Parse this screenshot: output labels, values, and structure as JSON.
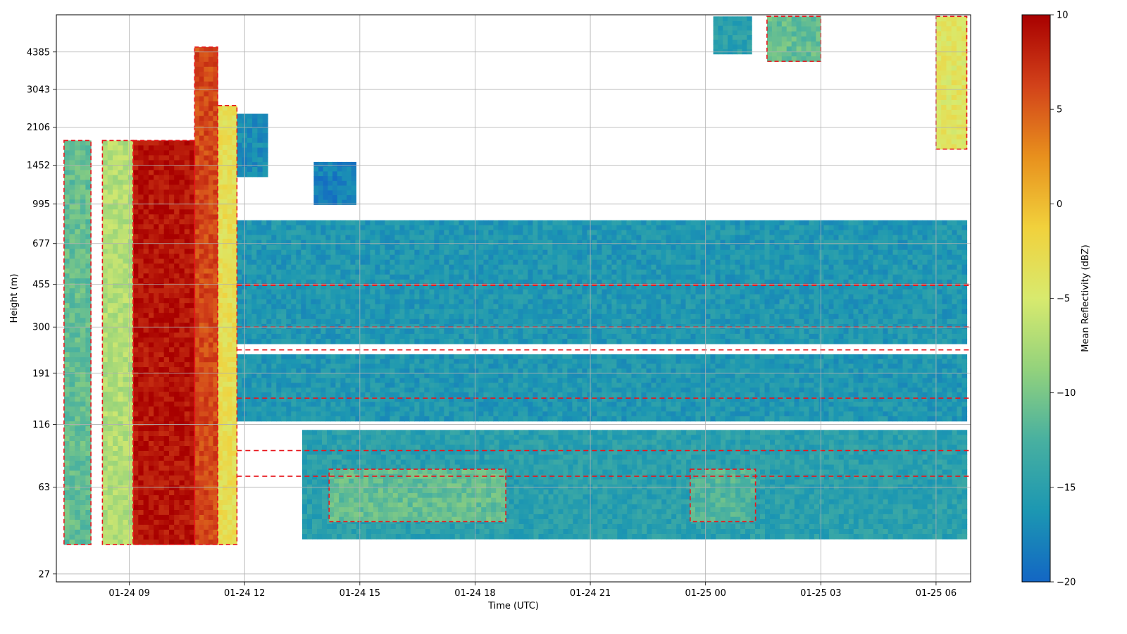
{
  "chart_data": {
    "type": "heatmap",
    "xlabel": "Time (UTC)",
    "ylabel": "Height (m)",
    "x_ticks": [
      "01-24 09",
      "01-24 12",
      "01-24 15",
      "01-24 18",
      "01-24 21",
      "01-25 00",
      "01-25 03",
      "01-25 06"
    ],
    "x_tick_hours": [
      9,
      12,
      15,
      18,
      21,
      24,
      27,
      30
    ],
    "xlim_hours": [
      7.1,
      30.9
    ],
    "y_ticks": [
      "27",
      "63",
      "116",
      "191",
      "300",
      "455",
      "677",
      "995",
      "1452",
      "2106",
      "3043",
      "4385"
    ],
    "y_scale": "log",
    "ylim": [
      25,
      6300
    ],
    "grid": true,
    "colorbar": {
      "label": "Mean Reflectivity (dBZ)",
      "ticks": [
        "10",
        "5",
        "0",
        "−5",
        "−10",
        "−15",
        "−20"
      ],
      "range": [
        -20,
        10
      ],
      "colormap": [
        "#1366c4",
        "#1c97b2",
        "#48b0a0",
        "#93d27c",
        "#d8ea6e",
        "#f1d13c",
        "#e8901d",
        "#d2421a",
        "#a80000"
      ]
    },
    "contour_color": "#e8161c",
    "regions": [
      {
        "t0": 7.3,
        "t1": 8.0,
        "h0": 36,
        "h1": 1850,
        "dbz": -11
      },
      {
        "t0": 8.3,
        "t1": 9.1,
        "h0": 36,
        "h1": 1850,
        "dbz": -7
      },
      {
        "t0": 9.1,
        "t1": 10.7,
        "h0": 36,
        "h1": 1850,
        "dbz": 9
      },
      {
        "t0": 10.7,
        "t1": 11.3,
        "h0": 36,
        "h1": 4600,
        "dbz": 6
      },
      {
        "t0": 11.3,
        "t1": 11.8,
        "h0": 36,
        "h1": 2600,
        "dbz": -3
      },
      {
        "t0": 11.8,
        "t1": 12.6,
        "h0": 1300,
        "h1": 2400,
        "dbz": -17
      },
      {
        "t0": 13.8,
        "t1": 14.9,
        "h0": 990,
        "h1": 1500,
        "dbz": -18
      },
      {
        "t0": 11.8,
        "t1": 30.8,
        "h0": 255,
        "h1": 850,
        "dbz": -16
      },
      {
        "t0": 11.8,
        "t1": 30.8,
        "h0": 120,
        "h1": 230,
        "dbz": -16
      },
      {
        "t0": 13.5,
        "t1": 30.8,
        "h0": 38,
        "h1": 110,
        "dbz": -15
      },
      {
        "t0": 14.2,
        "t1": 18.8,
        "h0": 45,
        "h1": 75,
        "dbz": -11
      },
      {
        "t0": 23.6,
        "t1": 25.3,
        "h0": 45,
        "h1": 75,
        "dbz": -12
      },
      {
        "t0": 25.6,
        "t1": 27.0,
        "h0": 4000,
        "h1": 6200,
        "dbz": -11
      },
      {
        "t0": 24.2,
        "t1": 25.2,
        "h0": 4300,
        "h1": 6200,
        "dbz": -15
      },
      {
        "t0": 30.0,
        "t1": 30.8,
        "h0": 1700,
        "h1": 6200,
        "dbz": -4
      }
    ]
  }
}
